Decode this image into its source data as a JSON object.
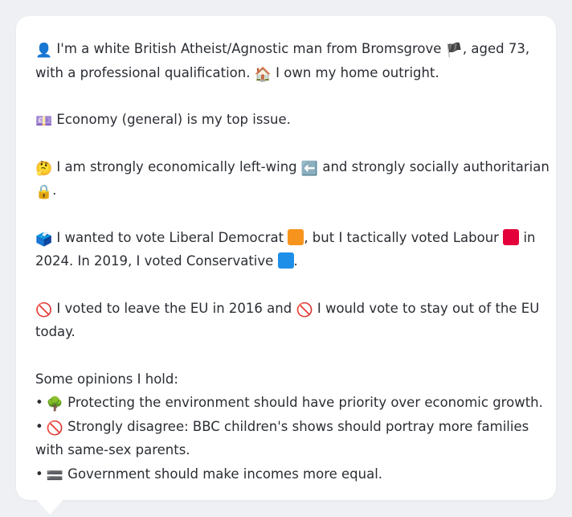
{
  "colors": {
    "liberal_democrat": "#f7941d",
    "labour": "#e4003b",
    "conservative": "#1d8fe8"
  },
  "profile": {
    "p1_icon": "👤",
    "p1_text_a": "I'm a white British Atheist/Agnostic man from Bromsgrove",
    "p1_flag": "🏴",
    "p1_text_b": ", aged 73,",
    "p1_line2_a": "with a professional qualification.",
    "p1_home_icon": "🏠",
    "p1_line2_b": "I own my home outright.",
    "p2_icon": "💷",
    "p2_text": "Economy (general) is my top issue.",
    "p3_icon": "🤔",
    "p3_text_a": "I am strongly economically left-wing",
    "p3_arrow_icon": "⬅️",
    "p3_text_b": "and strongly socially authoritarian",
    "p3_lock_icon": "🔒",
    "p3_text_c": ".",
    "p4_icon": "🗳️",
    "p4_text_a": "I wanted to vote Liberal Democrat",
    "p4_text_b": ", but I tactically voted Labour",
    "p4_text_c": "in",
    "p4_line2_a": "2024. In 2019, I voted Conservative",
    "p4_line2_b": ".",
    "p5_icon_a": "🚫",
    "p5_text_a": "I voted to leave the EU in 2016 and",
    "p5_icon_b": "🚫",
    "p5_text_b": "I would vote to stay out of the EU",
    "p5_line2": "today."
  },
  "opinions": {
    "heading": "Some opinions I hold:",
    "bullet": "•",
    "items": [
      {
        "icon": "🌳",
        "text": "Protecting the environment should have priority over economic growth."
      },
      {
        "icon": "🚫",
        "text": "Strongly disagree: BBC children's shows should portray more families",
        "text2": "with same-sex parents."
      },
      {
        "icon": "🟰",
        "text": "Government should make incomes more equal."
      }
    ]
  }
}
